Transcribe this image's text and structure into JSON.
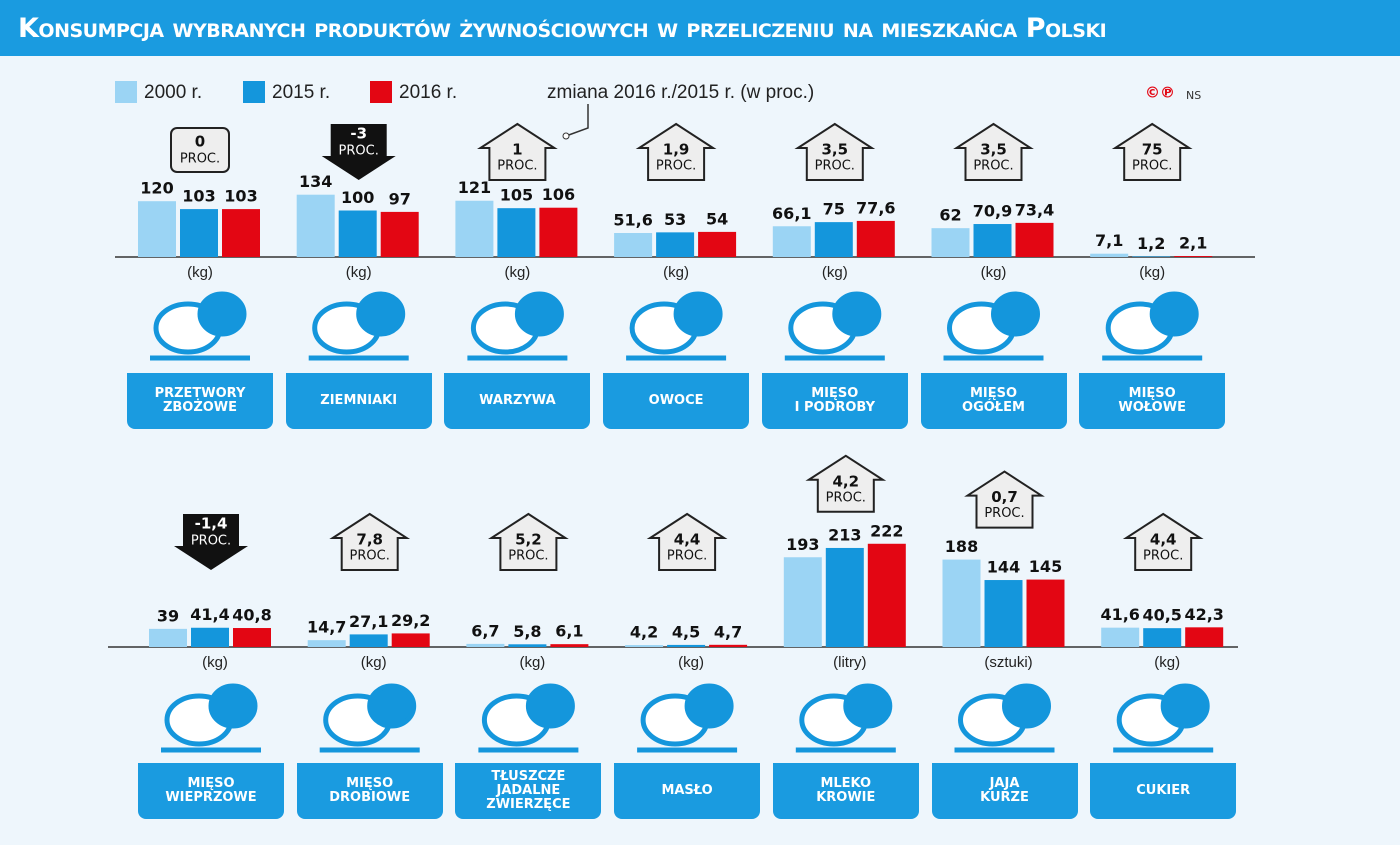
{
  "title": "Konsumpcja wybranych produktów żywnościowych w przeliczeniu na mieszkańca Polski",
  "legend": [
    {
      "name": "2000 r.",
      "color": "#9bd4f4"
    },
    {
      "name": "2015 r.",
      "color": "#1496dc"
    },
    {
      "name": "2016 r.",
      "color": "#e30613"
    }
  ],
  "change_note": "zmiana 2016 r./2015 r. (w proc.)",
  "change_unit": "PROC.",
  "copyright": "©℗",
  "credit": "NS",
  "rows": [
    {
      "products": [
        {
          "name": "PRZETWORY\nZBOŻOWE",
          "unit": "(kg)",
          "change": 0,
          "change_label": "0",
          "values": [
            120,
            103,
            103
          ],
          "value_labels": [
            "120",
            "103",
            "103"
          ]
        },
        {
          "name": "ZIEMNIAKI",
          "unit": "(kg)",
          "change": -3,
          "change_label": "-3",
          "values": [
            134,
            100,
            97
          ],
          "value_labels": [
            "134",
            "100",
            "97"
          ]
        },
        {
          "name": "WARZYWA",
          "unit": "(kg)",
          "change": 1,
          "change_label": "1",
          "values": [
            121,
            105,
            106
          ],
          "value_labels": [
            "121",
            "105",
            "106"
          ]
        },
        {
          "name": "OWOCE",
          "unit": "(kg)",
          "change": 1.9,
          "change_label": "1,9",
          "values": [
            51.6,
            53,
            54
          ],
          "value_labels": [
            "51,6",
            "53",
            "54"
          ]
        },
        {
          "name": "MIĘSO\nI PODROBY",
          "unit": "(kg)",
          "change": 3.5,
          "change_label": "3,5",
          "values": [
            66.1,
            75,
            77.6
          ],
          "value_labels": [
            "66,1",
            "75",
            "77,6"
          ]
        },
        {
          "name": "MIĘSO\nOGÓŁEM",
          "unit": "(kg)",
          "change": 3.5,
          "change_label": "3,5",
          "values": [
            62,
            70.9,
            73.4
          ],
          "value_labels": [
            "62",
            "70,9",
            "73,4"
          ]
        },
        {
          "name": "MIĘSO\nWOŁOWE",
          "unit": "(kg)",
          "change": 75,
          "change_label": "75",
          "values": [
            7.1,
            1.2,
            2.1
          ],
          "value_labels": [
            "7,1",
            "1,2",
            "2,1"
          ]
        }
      ]
    },
    {
      "products": [
        {
          "name": "MIĘSO\nWIEPRZOWE",
          "unit": "(kg)",
          "change": -1.4,
          "change_label": "-1,4",
          "values": [
            39,
            41.4,
            40.8
          ],
          "value_labels": [
            "39",
            "41,4",
            "40,8"
          ]
        },
        {
          "name": "MIĘSO\nDROBIOWE",
          "unit": "(kg)",
          "change": 7.8,
          "change_label": "7,8",
          "values": [
            14.7,
            27.1,
            29.2
          ],
          "value_labels": [
            "14,7",
            "27,1",
            "29,2"
          ]
        },
        {
          "name": "TŁUSZCZE\nJADALNE\nZWIERZĘCE",
          "unit": "(kg)",
          "change": 5.2,
          "change_label": "5,2",
          "values": [
            6.7,
            5.8,
            6.1
          ],
          "value_labels": [
            "6,7",
            "5,8",
            "6,1"
          ]
        },
        {
          "name": "MASŁO",
          "unit": "(kg)",
          "change": 4.4,
          "change_label": "4,4",
          "values": [
            4.2,
            4.5,
            4.7
          ],
          "value_labels": [
            "4,2",
            "4,5",
            "4,7"
          ]
        },
        {
          "name": "MLEKO\nKROWIE",
          "unit": "(litry)",
          "change": 4.2,
          "change_label": "4,2",
          "values": [
            193,
            213,
            222
          ],
          "value_labels": [
            "193",
            "213",
            "222"
          ]
        },
        {
          "name": "JAJA\nKURZE",
          "unit": "(sztuki)",
          "change": 0.7,
          "change_label": "0,7",
          "values": [
            188,
            144,
            145
          ],
          "value_labels": [
            "188",
            "144",
            "145"
          ]
        },
        {
          "name": "CUKIER",
          "unit": "(kg)",
          "change": 4.4,
          "change_label": "4,4",
          "values": [
            41.6,
            40.5,
            42.3
          ],
          "value_labels": [
            "41,6",
            "40,5",
            "42,3"
          ]
        }
      ]
    }
  ]
}
